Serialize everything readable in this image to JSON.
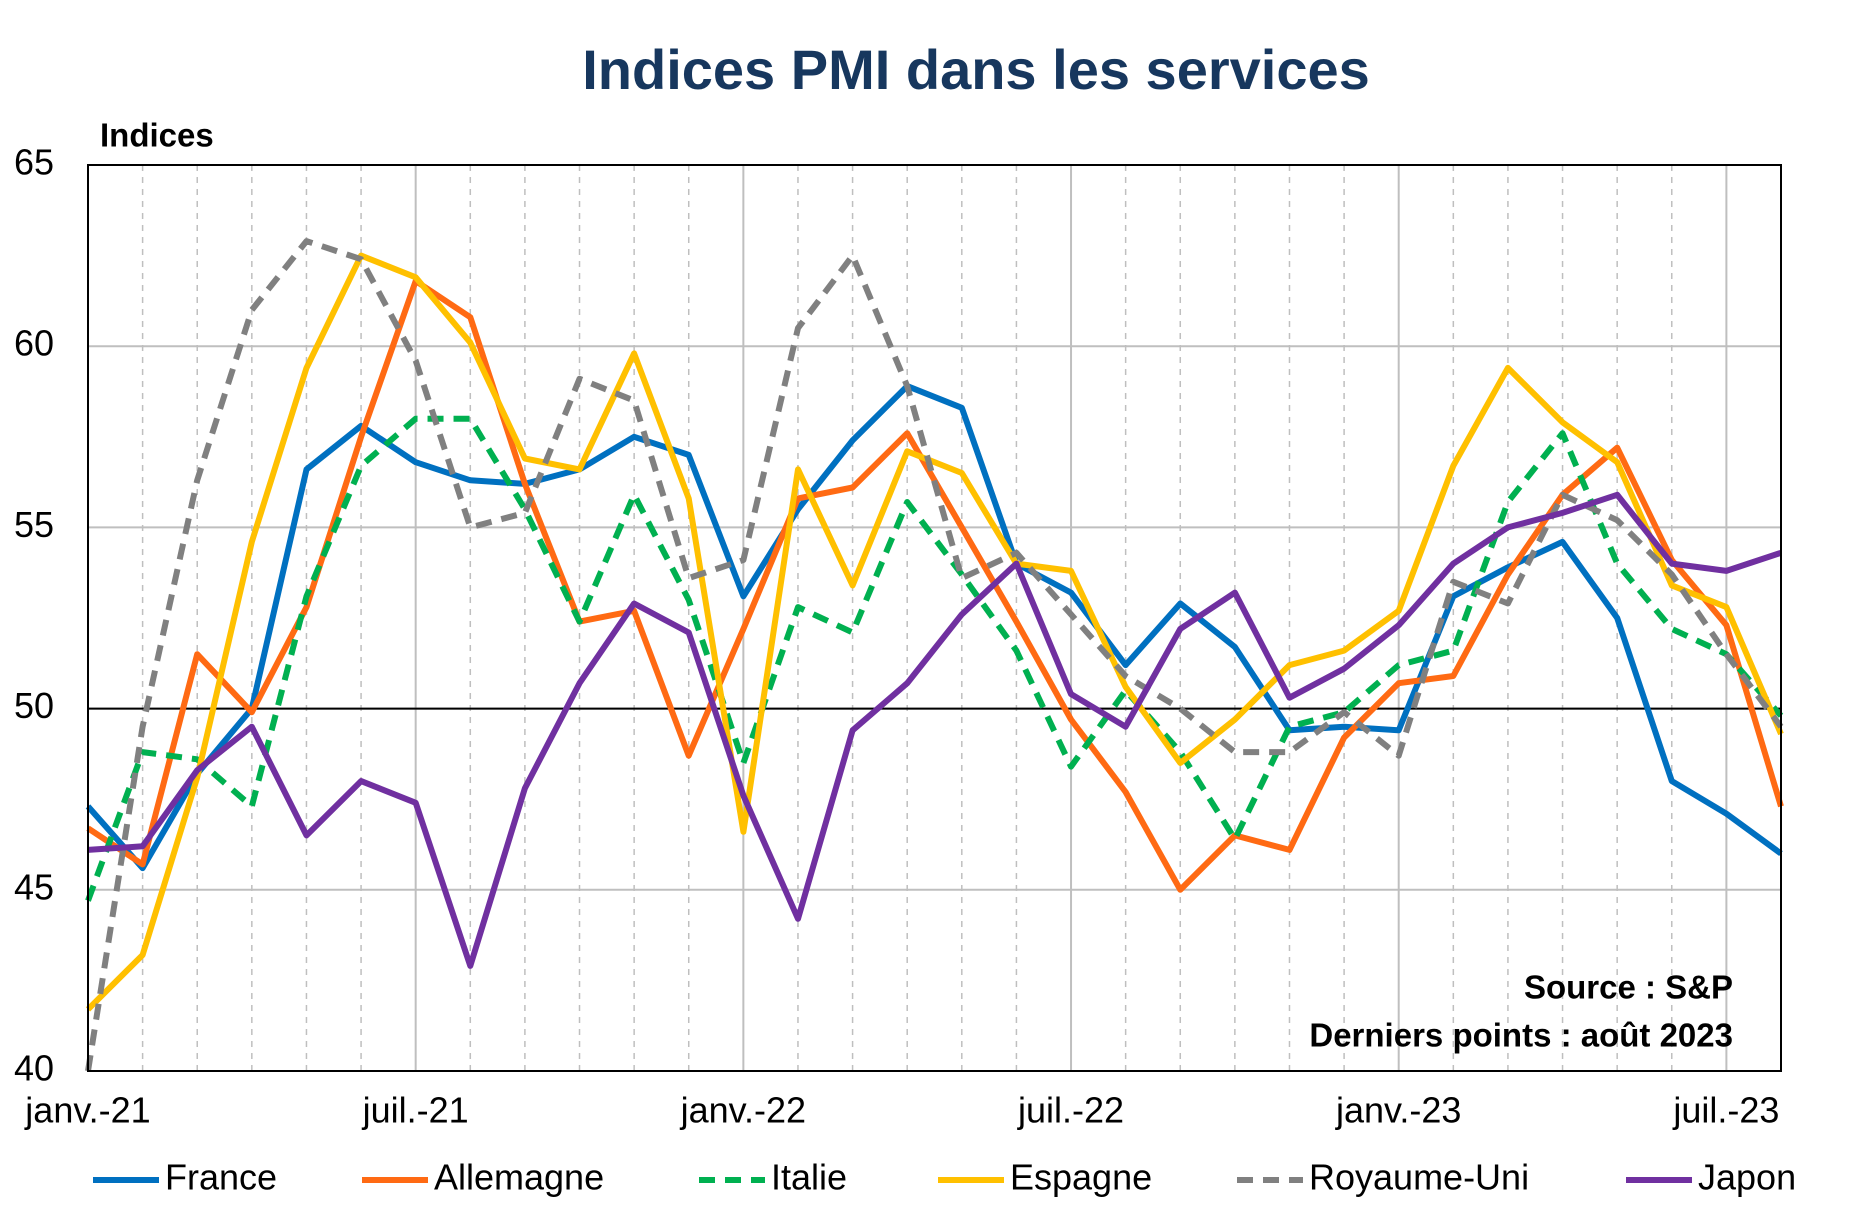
{
  "chart_data": {
    "type": "line",
    "title": "Indices PMI dans les services",
    "y_label": "Indices",
    "annotations": [
      "Source : S&P",
      "Derniers points : août 2023"
    ],
    "categories": [
      "janv.-21",
      null,
      null,
      null,
      null,
      null,
      "juil.-21",
      null,
      null,
      null,
      null,
      null,
      "janv.-22",
      null,
      null,
      null,
      null,
      null,
      "juil.-22",
      null,
      null,
      null,
      null,
      null,
      "janv.-23",
      null,
      null,
      null,
      null,
      null,
      "juil.-23",
      null
    ],
    "ylim": [
      40,
      65
    ],
    "yticks": [
      40,
      45,
      50,
      55,
      60,
      65
    ],
    "grid": true,
    "reference_line": 50,
    "legend": "bottom",
    "series": [
      {
        "name": "France",
        "color": "#0070c0",
        "line_style": "solid",
        "values": [
          47.3,
          45.6,
          48.2,
          50.0,
          56.6,
          57.8,
          56.8,
          56.3,
          56.2,
          56.6,
          57.5,
          57.0,
          53.1,
          55.5,
          57.4,
          58.9,
          58.3,
          54.0,
          53.2,
          51.2,
          52.9,
          51.7,
          49.4,
          49.5,
          49.4,
          53.1,
          53.9,
          54.6,
          52.5,
          48.0,
          47.1,
          46.0
        ]
      },
      {
        "name": "Allemagne",
        "color": "#ff6a13",
        "line_style": "solid",
        "values": [
          46.7,
          45.7,
          51.5,
          49.9,
          52.8,
          57.5,
          61.8,
          60.8,
          56.2,
          52.4,
          52.7,
          48.7,
          52.2,
          55.8,
          56.1,
          57.6,
          55.0,
          52.4,
          49.7,
          47.7,
          45.0,
          46.5,
          46.1,
          49.2,
          50.7,
          50.9,
          53.7,
          55.9,
          57.2,
          54.1,
          52.3,
          47.3
        ]
      },
      {
        "name": "Italie",
        "color": "#00b050",
        "line_style": "dashed",
        "values": [
          44.7,
          48.8,
          48.6,
          47.3,
          53.1,
          56.7,
          58.0,
          58.0,
          55.5,
          52.4,
          55.9,
          53.0,
          48.5,
          52.8,
          52.1,
          55.7,
          53.7,
          51.6,
          48.4,
          50.5,
          48.8,
          46.4,
          49.5,
          49.9,
          51.2,
          51.6,
          55.7,
          57.6,
          54.0,
          52.2,
          51.5,
          49.8
        ]
      },
      {
        "name": "Espagne",
        "color": "#ffc000",
        "line_style": "solid",
        "values": [
          41.7,
          43.2,
          48.1,
          54.6,
          59.4,
          62.5,
          61.9,
          60.1,
          56.9,
          56.6,
          59.8,
          55.8,
          46.6,
          56.6,
          53.4,
          57.1,
          56.5,
          54.0,
          53.8,
          50.6,
          48.5,
          49.7,
          51.2,
          51.6,
          52.7,
          56.7,
          59.4,
          57.9,
          56.8,
          53.4,
          52.8,
          49.3
        ]
      },
      {
        "name": "Royaume-Uni",
        "color": "#808080",
        "line_style": "dashed",
        "values": [
          40.0,
          49.5,
          56.3,
          61.0,
          62.9,
          62.4,
          59.6,
          55.0,
          55.4,
          59.1,
          58.5,
          53.6,
          54.1,
          60.5,
          62.5,
          58.9,
          53.6,
          54.3,
          52.6,
          50.9,
          50.0,
          48.8,
          48.8,
          49.9,
          48.7,
          53.5,
          52.9,
          55.9,
          55.2,
          53.7,
          51.5,
          49.5
        ]
      },
      {
        "name": "Japon",
        "color": "#7030a0",
        "line_style": "solid",
        "values": [
          46.1,
          46.2,
          48.3,
          49.5,
          46.5,
          48.0,
          47.4,
          42.9,
          47.8,
          50.7,
          52.9,
          52.1,
          47.6,
          44.2,
          49.4,
          50.7,
          52.6,
          54.0,
          50.4,
          49.5,
          52.2,
          53.2,
          50.3,
          51.1,
          52.3,
          54.0,
          55.0,
          55.4,
          55.9,
          54.0,
          53.8,
          54.3
        ]
      }
    ]
  }
}
